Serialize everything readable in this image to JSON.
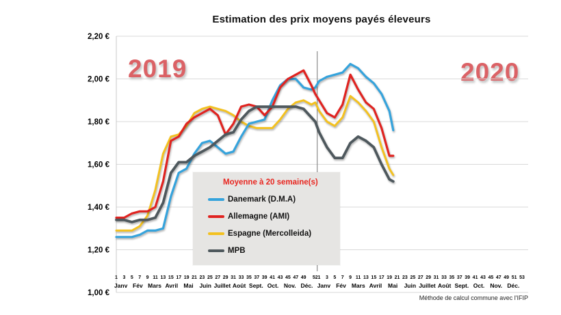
{
  "page": {
    "title": "Estimation des prix moyens payés éleveurs",
    "year_left": "2019",
    "year_right": "2020",
    "footnote": "Méthode de calcul commune avec l'IFIP"
  },
  "legend": {
    "title": "Moyenne à 20 semaine(s)"
  },
  "chart_data": {
    "type": "line",
    "title": "Estimation des prix moyens payés éleveurs",
    "unit": "EUR/kg",
    "x_encoding": "global week index: 1-52 = year 2019, 53-105 = year 2020 (week 53 of axis = week 1 of 2020)",
    "y_axis": {
      "min": 1.0,
      "max": 2.2,
      "ticks": [
        {
          "value": 2.2,
          "label": "2,20 €"
        },
        {
          "value": 2.0,
          "label": "2,00 €"
        },
        {
          "value": 1.8,
          "label": "1,80 €"
        },
        {
          "value": 1.6,
          "label": "1,60 €"
        },
        {
          "value": 1.4,
          "label": "1,40 €"
        },
        {
          "value": 1.2,
          "label": "1,20 €"
        },
        {
          "value": 1.0,
          "label": "1,00 €"
        }
      ]
    },
    "x_axis": {
      "years": [
        {
          "label": "2019",
          "num_weeks": 52,
          "week_ticks": [
            1,
            3,
            5,
            7,
            9,
            11,
            13,
            15,
            17,
            19,
            21,
            23,
            25,
            27,
            29,
            31,
            33,
            35,
            37,
            39,
            41,
            43,
            45,
            47,
            49,
            52
          ],
          "months": [
            "Janv",
            "Fév",
            "Mars",
            "Avril",
            "Mai",
            "Juin",
            "Juillet",
            "Août",
            "Sept.",
            "Oct.",
            "Nov.",
            "Déc."
          ]
        },
        {
          "label": "2020",
          "num_weeks": 53,
          "week_ticks": [
            1,
            3,
            5,
            7,
            9,
            11,
            13,
            15,
            17,
            19,
            21,
            23,
            25,
            27,
            29,
            31,
            33,
            35,
            37,
            39,
            41,
            43,
            45,
            47,
            49,
            51,
            53
          ],
          "months": [
            "Janv",
            "Fév",
            "Mars",
            "Avril",
            "Mai",
            "Juin",
            "Juillet",
            "Août",
            "Sept.",
            "Oct.",
            "Nov.",
            "Déc."
          ]
        }
      ]
    },
    "divider_after_global_week": 52,
    "series": [
      {
        "name": "Espagne (Mercolleida)",
        "color": "#f3c120",
        "stroke_width": 3,
        "x": [
          1,
          3,
          5,
          7,
          9,
          11,
          13,
          15,
          17,
          19,
          21,
          23,
          25,
          27,
          29,
          31,
          33,
          35,
          37,
          39,
          41,
          43,
          45,
          47,
          49,
          51,
          52,
          53,
          55,
          57,
          59,
          61,
          63,
          65,
          67,
          69,
          71,
          72
        ],
        "values": [
          1.29,
          1.29,
          1.29,
          1.31,
          1.36,
          1.48,
          1.65,
          1.73,
          1.74,
          1.78,
          1.84,
          1.86,
          1.87,
          1.86,
          1.85,
          1.83,
          1.8,
          1.78,
          1.77,
          1.77,
          1.77,
          1.81,
          1.86,
          1.89,
          1.9,
          1.88,
          1.89,
          1.85,
          1.8,
          1.78,
          1.82,
          1.92,
          1.89,
          1.85,
          1.8,
          1.68,
          1.58,
          1.55
        ]
      },
      {
        "name": "Danemark (D.M.A)",
        "color": "#35a3dc",
        "stroke_width": 3.2,
        "x": [
          1,
          3,
          5,
          7,
          9,
          11,
          13,
          15,
          17,
          19,
          21,
          23,
          25,
          27,
          29,
          31,
          33,
          35,
          37,
          39,
          41,
          43,
          45,
          47,
          49,
          51,
          52,
          53,
          55,
          57,
          59,
          61,
          63,
          65,
          67,
          69,
          71,
          72
        ],
        "values": [
          1.26,
          1.26,
          1.26,
          1.27,
          1.29,
          1.29,
          1.3,
          1.45,
          1.56,
          1.58,
          1.65,
          1.7,
          1.71,
          1.68,
          1.65,
          1.66,
          1.73,
          1.79,
          1.8,
          1.81,
          1.9,
          1.97,
          2.0,
          2.0,
          1.96,
          1.95,
          1.96,
          1.99,
          2.01,
          2.02,
          2.03,
          2.07,
          2.05,
          2.01,
          1.98,
          1.93,
          1.85,
          1.76
        ]
      },
      {
        "name": "Allemagne (AMI)",
        "color": "#e02320",
        "stroke_width": 3.2,
        "x": [
          1,
          3,
          5,
          7,
          9,
          11,
          13,
          15,
          17,
          19,
          21,
          23,
          25,
          27,
          29,
          31,
          33,
          35,
          37,
          39,
          41,
          43,
          45,
          47,
          49,
          51,
          52,
          53,
          55,
          57,
          59,
          61,
          63,
          65,
          67,
          69,
          71,
          72
        ],
        "values": [
          1.35,
          1.35,
          1.37,
          1.38,
          1.38,
          1.4,
          1.52,
          1.71,
          1.73,
          1.79,
          1.82,
          1.84,
          1.86,
          1.83,
          1.74,
          1.79,
          1.87,
          1.88,
          1.87,
          1.83,
          1.87,
          1.96,
          2.0,
          2.02,
          2.04,
          1.97,
          1.93,
          1.9,
          1.84,
          1.82,
          1.88,
          2.02,
          1.95,
          1.89,
          1.86,
          1.77,
          1.64,
          1.64
        ]
      },
      {
        "name": "MPB",
        "color": "#4e585d",
        "stroke_width": 3.8,
        "x": [
          1,
          3,
          5,
          7,
          9,
          11,
          13,
          15,
          17,
          19,
          21,
          23,
          25,
          27,
          29,
          31,
          33,
          35,
          37,
          39,
          41,
          43,
          45,
          47,
          49,
          51,
          52,
          53,
          55,
          57,
          59,
          61,
          63,
          65,
          67,
          69,
          71,
          72
        ],
        "values": [
          1.34,
          1.34,
          1.33,
          1.34,
          1.34,
          1.35,
          1.42,
          1.56,
          1.61,
          1.61,
          1.64,
          1.66,
          1.68,
          1.71,
          1.74,
          1.75,
          1.81,
          1.85,
          1.87,
          1.87,
          1.87,
          1.87,
          1.87,
          1.87,
          1.86,
          1.82,
          1.8,
          1.75,
          1.68,
          1.63,
          1.63,
          1.7,
          1.73,
          1.71,
          1.68,
          1.6,
          1.53,
          1.52
        ]
      }
    ],
    "legend_order": [
      "Danemark (D.M.A)",
      "Allemagne (AMI)",
      "Espagne (Mercolleida)",
      "MPB"
    ],
    "colors": {
      "danemark": "#35a3dc",
      "allemagne": "#e02320",
      "espagne": "#f3c120",
      "mpb": "#4e585d",
      "legend_title": "#e8251f",
      "year_label": "#db6266",
      "gridline": "#d9d9d9",
      "divider": "#8c8c8c"
    }
  }
}
